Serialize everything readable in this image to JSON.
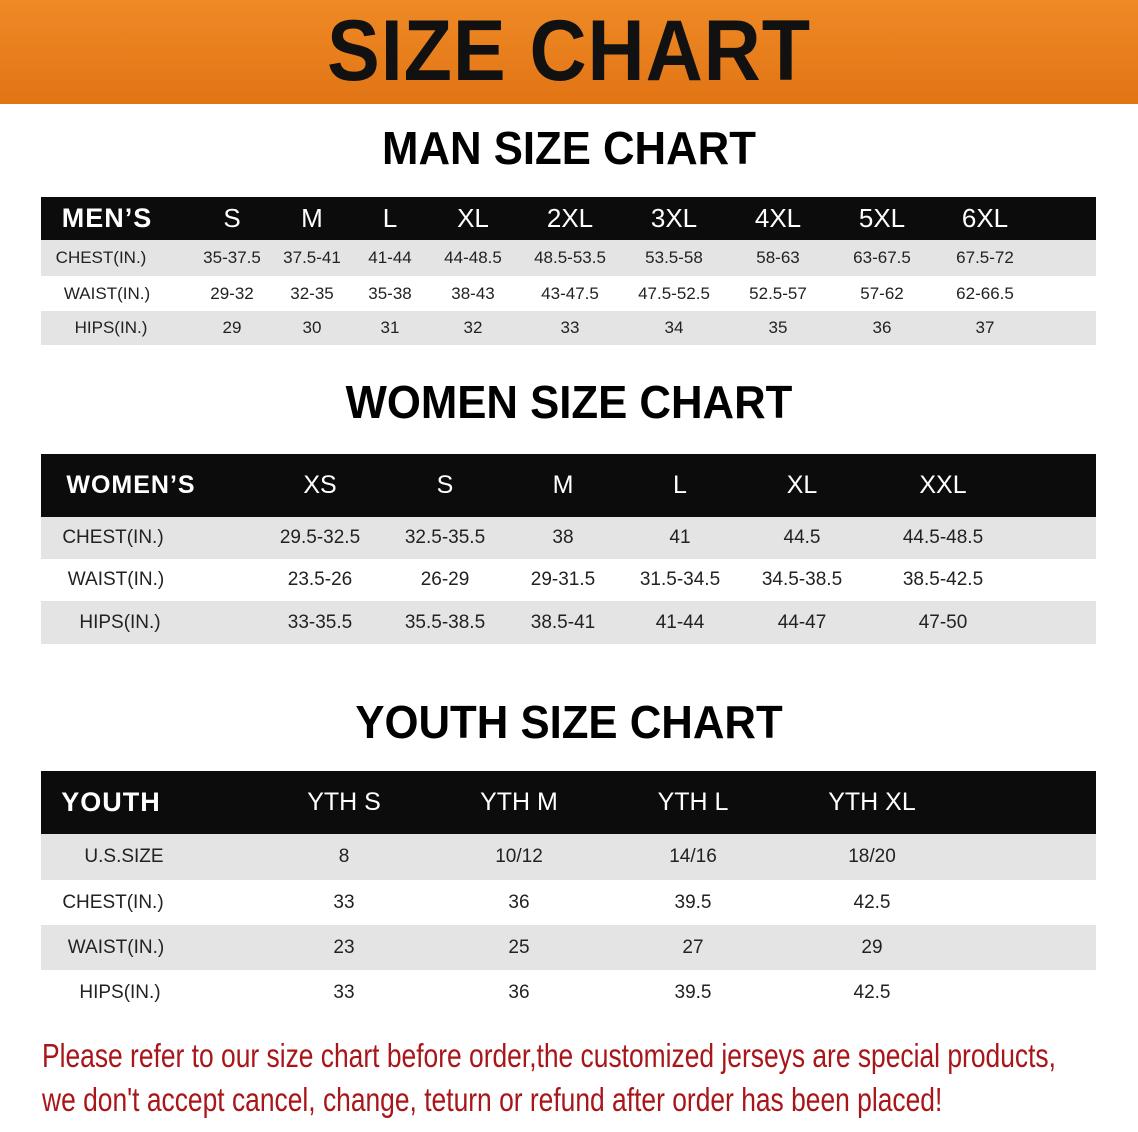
{
  "banner": {
    "title": "SIZE CHART",
    "color": "#e8801f"
  },
  "men": {
    "title": "MAN SIZE CHART",
    "header": [
      "MEN’S",
      "S",
      "M",
      "L",
      "XL",
      "2XL",
      "3XL",
      "4XL",
      "5XL",
      "6XL"
    ],
    "rows": [
      [
        "CHEST(IN.)",
        "35-37.5",
        "37.5-41",
        "41-44",
        "44-48.5",
        "48.5-53.5",
        "53.5-58",
        "58-63",
        "63-67.5",
        "67.5-72"
      ],
      [
        "WAIST(IN.)",
        "29-32",
        "32-35",
        "35-38",
        "38-43",
        "43-47.5",
        "47.5-52.5",
        "52.5-57",
        "57-62",
        "62-66.5"
      ],
      [
        "HIPS(IN.)",
        "29",
        "30",
        "31",
        "32",
        "33",
        "34",
        "35",
        "36",
        "37"
      ]
    ]
  },
  "women": {
    "title": "WOMEN SIZE CHART",
    "header": [
      "WOMEN’S",
      "XS",
      "S",
      "M",
      "L",
      "XL",
      "XXL"
    ],
    "rows": [
      [
        "CHEST(IN.)",
        "29.5-32.5",
        "32.5-35.5",
        "38",
        "41",
        "44.5",
        "44.5-48.5"
      ],
      [
        "WAIST(IN.)",
        "23.5-26",
        "26-29",
        "29-31.5",
        "31.5-34.5",
        "34.5-38.5",
        "38.5-42.5"
      ],
      [
        "HIPS(IN.)",
        "33-35.5",
        "35.5-38.5",
        "38.5-41",
        "41-44",
        "44-47",
        "47-50"
      ]
    ]
  },
  "youth": {
    "title": "YOUTH SIZE CHART",
    "header": [
      "YOUTH",
      "YTH S",
      "YTH M",
      "YTH L",
      "YTH XL"
    ],
    "rows": [
      [
        "U.S.SIZE",
        "8",
        "10/12",
        "14/16",
        "18/20"
      ],
      [
        "CHEST(IN.)",
        "33",
        "36",
        "39.5",
        "42.5"
      ],
      [
        "WAIST(IN.)",
        "23",
        "25",
        "27",
        "29"
      ],
      [
        "HIPS(IN.)",
        "33",
        "36",
        "39.5",
        "42.5"
      ]
    ]
  },
  "note": {
    "line1": "Please refer to our size chart before order,the customized jerseys are special products,",
    "line2": "we don't accept cancel, change, teturn or refund after order has been placed!",
    "color": "#a8161a"
  }
}
